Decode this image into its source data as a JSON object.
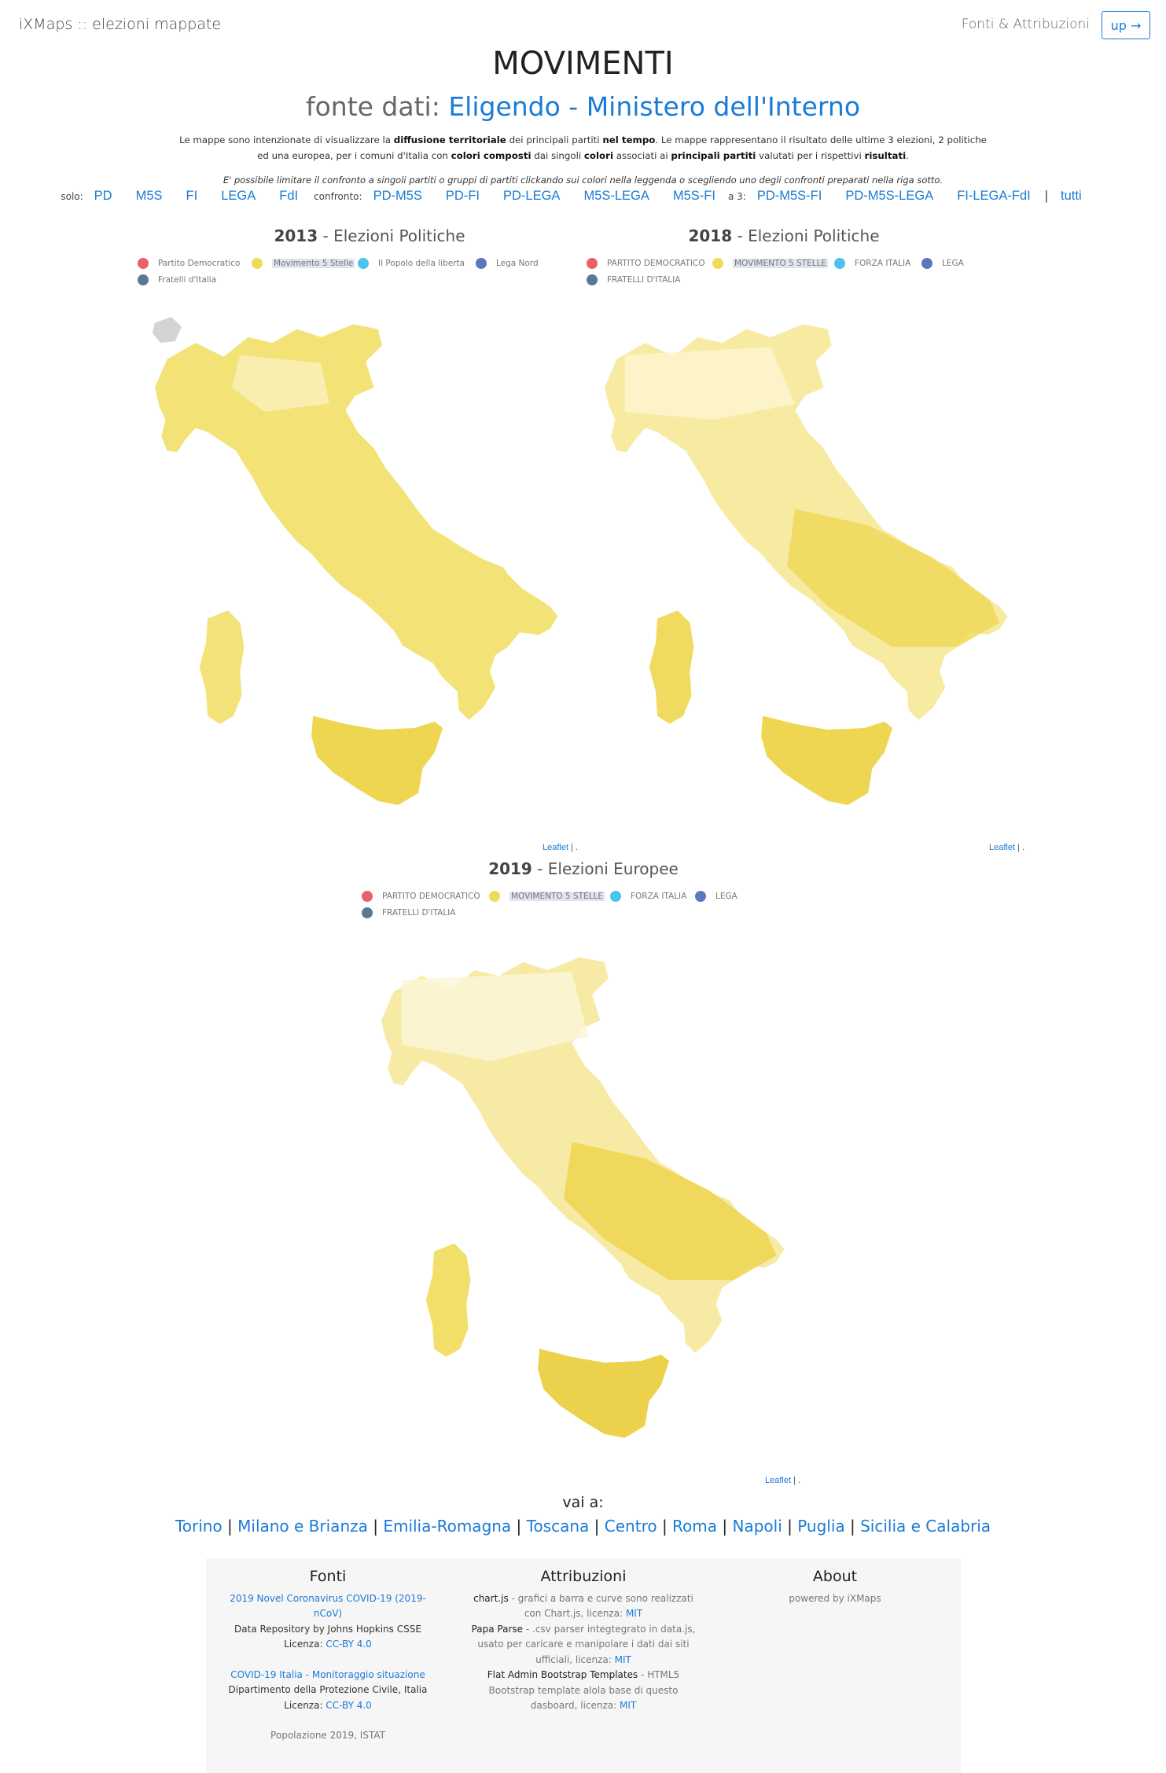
{
  "header": {
    "brand": "iXMaps :: elezioni mappate",
    "fonti_link": "Fonti & Attribuzioni",
    "up_button": "up →"
  },
  "title": "MOVIMENTI",
  "subtitle": {
    "prefix": "fonte dati: ",
    "source": "Eligendo - Ministero dell'Interno"
  },
  "intro": {
    "p1": "Le mappe sono intenzionate di visualizzare la",
    "b1": "diffusione territoriale",
    "p2": "dei principali partiti",
    "b2": "nel tempo",
    "p3": ". Le mappe rappresentano il risultato delle ultime 3 elezioni, 2 politiche ed una europea, per i comuni d'Italia con",
    "b3": "colori composti",
    "p4": "dai singoli",
    "b4": "colori",
    "p5": "associati ai",
    "b5": "principali partiti",
    "p6": "valutati per i rispettivi",
    "b6": "risultati",
    "p7": "."
  },
  "hint": "E' possibile limitare il confronto a singoli partiti o gruppi di partiti clickando sui colori nella leggenda o scegliendo uno degli confronti preparati nella riga sotto.",
  "filters": {
    "solo_label": "solo:",
    "solo": [
      "PD",
      "M5S",
      "FI",
      "LEGA",
      "FdI"
    ],
    "confronto_label": "confronto:",
    "confronto": [
      "PD-M5S",
      "PD-FI",
      "PD-LEGA",
      "M5S-LEGA",
      "M5S-FI"
    ],
    "a3_label": "a 3:",
    "a3": [
      "PD-M5S-FI",
      "PD-M5S-LEGA",
      "FI-LEGA-FdI"
    ],
    "separator": "|",
    "tutti": "tutti"
  },
  "maps": [
    {
      "year": "2013",
      "label": " - Elezioni Politiche",
      "legend": [
        {
          "name": "Partito Democratico",
          "color": "#e8606a"
        },
        {
          "name": "Movimento 5 Stelle",
          "color": "#f0db59",
          "highlight": true
        },
        {
          "name": "Il Popolo della liberta",
          "color": "#4cc2ee"
        },
        {
          "name": "Lega Nord",
          "color": "#5b77bd"
        },
        {
          "name": "Fratelli d'Italia",
          "color": "#5a7892"
        }
      ],
      "attribution": "Leaflet",
      "attribution_rest": " | ."
    },
    {
      "year": "2018",
      "label": " - Elezioni Politiche",
      "legend": [
        {
          "name": "PARTITO DEMOCRATICO",
          "color": "#e8606a"
        },
        {
          "name": "MOVIMENTO 5 STELLE",
          "color": "#f0db59",
          "highlight": true
        },
        {
          "name": "FORZA ITALIA",
          "color": "#4cc2ee"
        },
        {
          "name": "LEGA",
          "color": "#5b77bd"
        },
        {
          "name": "FRATELLI D'ITALIA",
          "color": "#5a7892"
        }
      ],
      "attribution": "Leaflet",
      "attribution_rest": " | ."
    },
    {
      "year": "2019",
      "label": " - Elezioni Europee",
      "legend": [
        {
          "name": "PARTITO DEMOCRATICO",
          "color": "#e8606a"
        },
        {
          "name": "MOVIMENTO 5 STELLE",
          "color": "#f0db59",
          "highlight": true
        },
        {
          "name": "FORZA ITALIA",
          "color": "#4cc2ee"
        },
        {
          "name": "LEGA",
          "color": "#5b77bd"
        },
        {
          "name": "FRATELLI D'ITALIA",
          "color": "#5a7892"
        }
      ],
      "attribution": "Leaflet",
      "attribution_rest": " | ."
    }
  ],
  "vai": "vai a:",
  "links": [
    "Torino",
    "Milano e Brianza",
    "Emilia-Romagna",
    "Toscana",
    "Centro",
    "Roma",
    "Napoli",
    "Puglia",
    "Sicilia e Calabria"
  ],
  "link_separator": " | ",
  "footer": {
    "fonti": {
      "heading": "Fonti",
      "src1_link": "2019 Novel Coronavirus COVID-19 (2019-nCoV)",
      "src1_line2": "Data Repository by Johns Hopkins CSSE",
      "src1_lic_label": "Licenza: ",
      "src1_lic": "CC-BY 4.0",
      "src2_link": "COVID-19 Italia - Monitoraggio situazione",
      "src2_line2": "Dipartimento della Protezione Civile, Italia",
      "src2_lic_label": "Licenza: ",
      "src2_lic": "CC-BY 4.0",
      "pop": "Popolazione 2019, ISTAT"
    },
    "attribuzioni": {
      "heading": "Attribuzioni",
      "a1_name": "chart.js",
      "a1_desc": " - grafici a barra e curve sono realizzati con Chart.js, licenza: ",
      "a1_lic": "MIT",
      "a2_name": "Papa Parse",
      "a2_desc": " - .csv parser integtegrato in data.js, usato per caricare e manipolare i dati dai siti ufficiali, licenza: ",
      "a2_lic": "MIT",
      "a3_name": "Flat Admin Bootstrap Templates",
      "a3_desc": " - HTML5 Bootstrap template alola base di questo dasboard, licenza: ",
      "a3_lic": "MIT"
    },
    "about": {
      "heading": "About",
      "text": "powered by iXMaps"
    }
  }
}
